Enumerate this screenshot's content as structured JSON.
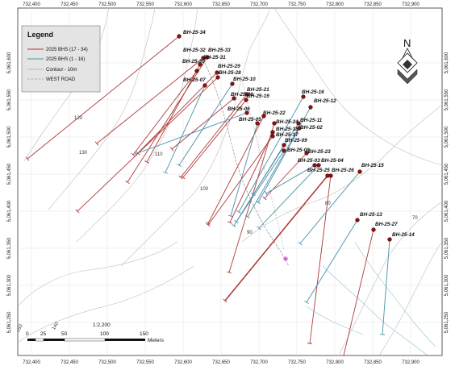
{
  "map": {
    "x_ticks": [
      "732,400",
      "732,450",
      "732,500",
      "732,550",
      "732,600",
      "732,650",
      "732,700",
      "732,750",
      "732,800",
      "732,850",
      "732,900"
    ],
    "y_ticks": [
      "5,061,600",
      "5,061,550",
      "5,061,500",
      "5,061,450",
      "5,061,400",
      "5,061,350",
      "5,061,300",
      "5,061,250"
    ],
    "legend": {
      "title": "Legend",
      "items": [
        {
          "label": "2025 BHS (17 - 34)",
          "color": "#b03a3a",
          "type": "red-line"
        },
        {
          "label": "2025 BHS (1 - 16)",
          "color": "#4a8fa8",
          "type": "blue-line"
        },
        {
          "label": "Contour - 10m",
          "color": "#a8a8a8",
          "type": "gray-line"
        },
        {
          "label": "WEST ROAD",
          "color": "#999999",
          "type": "dash-line"
        }
      ]
    },
    "scale": {
      "ratio": "1:2,200",
      "labels": [
        "0",
        "25",
        "50",
        "100",
        "150"
      ],
      "unit": "Meters"
    },
    "north_label": "N",
    "contour_labels": [
      "120",
      "130",
      "110",
      "100",
      "90",
      "80",
      "70",
      "150",
      "140"
    ],
    "holes": [
      {
        "id": "BH-25-34",
        "color": "#b03a3a"
      },
      {
        "id": "BH-25-32",
        "color": "#b03a3a"
      },
      {
        "id": "BH-25-33",
        "color": "#b03a3a"
      },
      {
        "id": "BH-25-31",
        "color": "#b03a3a"
      },
      {
        "id": "BH-25-30",
        "color": "#b03a3a"
      },
      {
        "id": "BH-25-29",
        "color": "#b03a3a"
      },
      {
        "id": "BH-25-28",
        "color": "#b03a3a"
      },
      {
        "id": "BH-25-07",
        "color": "#4a8fa8"
      },
      {
        "id": "BH-25-10",
        "color": "#4a8fa8"
      },
      {
        "id": "BH-25-21",
        "color": "#b03a3a"
      },
      {
        "id": "BH-25-20",
        "color": "#b03a3a"
      },
      {
        "id": "BH-25-19",
        "color": "#b03a3a"
      },
      {
        "id": "BH-25-16",
        "color": "#4a8fa8"
      },
      {
        "id": "BH-25-12",
        "color": "#4a8fa8"
      },
      {
        "id": "BH-25-06",
        "color": "#4a8fa8"
      },
      {
        "id": "BH-25-22",
        "color": "#b03a3a"
      },
      {
        "id": "BH-25-05",
        "color": "#4a8fa8"
      },
      {
        "id": "BH-25-24",
        "color": "#b03a3a"
      },
      {
        "id": "BH-25-11",
        "color": "#4a8fa8"
      },
      {
        "id": "BH-25-02",
        "color": "#4a8fa8"
      },
      {
        "id": "BH-25-18",
        "color": "#b03a3a"
      },
      {
        "id": "BH-25-17",
        "color": "#b03a3a"
      },
      {
        "id": "BH-25-09",
        "color": "#4a8fa8"
      },
      {
        "id": "BH-25-08",
        "color": "#4a8fa8"
      },
      {
        "id": "BH-25-23",
        "color": "#b03a3a"
      },
      {
        "id": "BH-25-03",
        "color": "#4a8fa8"
      },
      {
        "id": "BH-25-04",
        "color": "#4a8fa8"
      },
      {
        "id": "BH-25-25",
        "color": "#b03a3a"
      },
      {
        "id": "BH-25-26",
        "color": "#b03a3a"
      },
      {
        "id": "BH-25-15",
        "color": "#4a8fa8"
      },
      {
        "id": "BH-25-13",
        "color": "#4a8fa8"
      },
      {
        "id": "BH-25-27",
        "color": "#b03a3a"
      },
      {
        "id": "BH-25-14",
        "color": "#4a8fa8"
      }
    ]
  }
}
